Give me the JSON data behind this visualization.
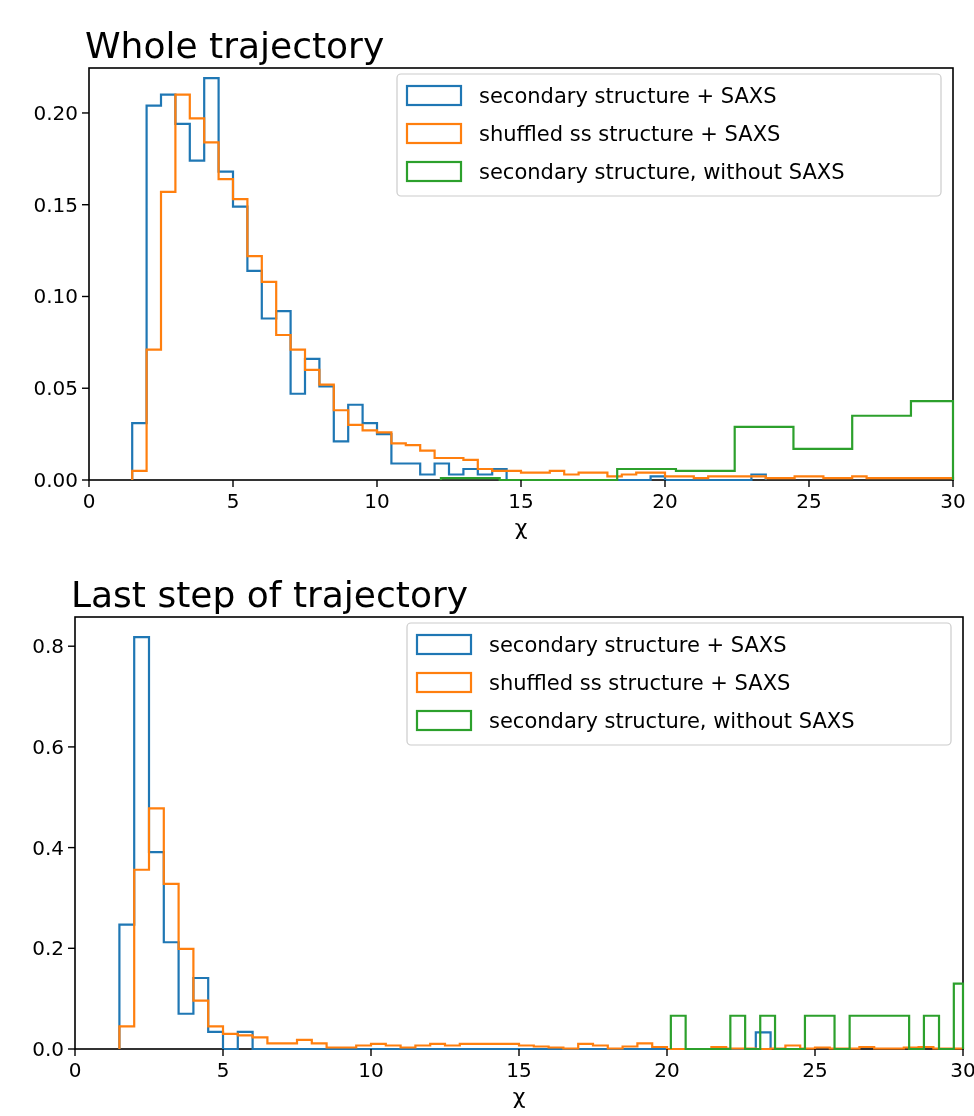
{
  "chart_data": [
    {
      "type": "step",
      "title": "Whole trajectory",
      "xlabel": "χ",
      "xlim": [
        0,
        30
      ],
      "xticks": [
        0,
        5,
        10,
        15,
        20,
        25,
        30
      ],
      "ylim": [
        0,
        0.2245
      ],
      "yticks": [
        {
          "value": 0,
          "label": "0.00"
        },
        {
          "value": 0.05,
          "label": "0.05"
        },
        {
          "value": 0.1,
          "label": "0.10"
        },
        {
          "value": 0.15,
          "label": "0.15"
        },
        {
          "value": 0.2,
          "label": "0.20"
        }
      ],
      "legend": "top right",
      "series": [
        {
          "name": "secondary structure + SAXS",
          "color": "#1f77b4",
          "x": [
            1.5,
            1.5,
            2,
            2.5,
            3,
            3.5,
            4,
            4.5,
            5,
            5.5,
            6,
            6.5,
            7,
            7.5,
            8,
            8.5,
            9,
            9.5,
            10,
            10.5,
            11,
            11.5,
            12,
            12.5,
            13,
            13.5,
            14,
            14.5,
            15,
            15.5,
            16,
            16.5,
            17,
            17.5,
            18,
            18.5,
            19,
            19.5,
            20,
            20.5,
            21,
            21.5,
            22,
            22.5,
            23,
            23.5
          ],
          "values": [
            0,
            0.031,
            0.204,
            0.21,
            0.194,
            0.174,
            0.219,
            0.168,
            0.149,
            0.114,
            0.088,
            0.092,
            0.047,
            0.066,
            0.051,
            0.021,
            0.041,
            0.031,
            0.025,
            0.009,
            0.009,
            0.003,
            0.009,
            0.003,
            0.006,
            0.003,
            0.006,
            0,
            0,
            0,
            0,
            0,
            0,
            0,
            0,
            0,
            0,
            0.002,
            0,
            0,
            0,
            0,
            0,
            0,
            0.003,
            0
          ]
        },
        {
          "name": "shuffled ss structure + SAXS",
          "color": "#ff7f0e",
          "x": [
            1.5,
            1.5,
            2,
            2.5,
            3,
            3.5,
            4,
            4.5,
            5,
            5.5,
            6,
            6.5,
            7,
            7.5,
            8,
            8.5,
            9,
            9.5,
            10,
            10.5,
            11,
            11.5,
            12,
            12.5,
            13,
            13.5,
            14,
            14.5,
            15,
            15.5,
            16,
            16.5,
            17,
            17.5,
            18,
            18.5,
            19,
            19.5,
            20,
            20.5,
            21,
            21.5,
            22,
            22.5,
            23,
            23.5,
            24,
            24.5,
            25,
            25.5,
            26,
            26.5,
            27,
            27.5,
            28,
            28.5,
            29,
            29.5,
            30
          ],
          "values": [
            0,
            0.005,
            0.071,
            0.157,
            0.21,
            0.197,
            0.184,
            0.164,
            0.153,
            0.122,
            0.108,
            0.079,
            0.071,
            0.06,
            0.052,
            0.038,
            0.03,
            0.027,
            0.026,
            0.02,
            0.019,
            0.016,
            0.012,
            0.012,
            0.011,
            0.006,
            0.005,
            0.005,
            0.004,
            0.004,
            0.005,
            0.003,
            0.004,
            0.004,
            0.002,
            0.003,
            0.004,
            0.004,
            0.002,
            0.002,
            0.001,
            0.002,
            0.002,
            0.002,
            0.002,
            0.001,
            0.001,
            0.002,
            0.002,
            0.001,
            0.001,
            0.002,
            0.001,
            0.001,
            0.001,
            0.001,
            0.001,
            0.001,
            0
          ]
        },
        {
          "name": "secondary structure, without SAXS",
          "color": "#2ca02c",
          "x": [
            12.22,
            12.22,
            14.26,
            16.3,
            18.34,
            20.38,
            22.42,
            24.46,
            26.5,
            28.54,
            30
          ],
          "values": [
            0,
            0.001,
            0,
            0,
            0.006,
            0.005,
            0.029,
            0.017,
            0.035,
            0.043,
            0
          ]
        }
      ]
    },
    {
      "type": "step",
      "title": "Last step of trajectory",
      "xlabel": "χ",
      "xlim": [
        0,
        30
      ],
      "xticks": [
        0,
        5,
        10,
        15,
        20,
        25,
        30
      ],
      "ylim": [
        0,
        0.858
      ],
      "yticks": [
        {
          "value": 0,
          "label": "0.0"
        },
        {
          "value": 0.2,
          "label": "0.2"
        },
        {
          "value": 0.4,
          "label": "0.4"
        },
        {
          "value": 0.6,
          "label": "0.6"
        },
        {
          "value": 0.8,
          "label": "0.8"
        }
      ],
      "legend": "top right",
      "series": [
        {
          "name": "secondary structure + SAXS",
          "color": "#1f77b4",
          "x": [
            1.5,
            1.5,
            2,
            2.5,
            3,
            3.5,
            4,
            4.5,
            5,
            5.5,
            6,
            6.5,
            7,
            7.5,
            8,
            8.5,
            9,
            9.5,
            10,
            10.5,
            11,
            11.5,
            12,
            12.5,
            13,
            13.5,
            14,
            14.5,
            15,
            15.5,
            16,
            16.5,
            17,
            17.5,
            18,
            18.5,
            19,
            19.5,
            20,
            20.5,
            21,
            21.5,
            22,
            22.5,
            23,
            23.5
          ],
          "values": [
            0,
            0.247,
            0.818,
            0.391,
            0.212,
            0.07,
            0.141,
            0.034,
            0,
            0.034,
            0,
            0,
            0,
            0,
            0,
            0,
            0,
            0,
            0,
            0,
            0,
            0,
            0,
            0,
            0,
            0,
            0,
            0,
            0,
            0,
            0,
            0,
            0,
            0,
            0,
            0,
            0,
            0,
            0,
            0,
            0,
            0,
            0,
            0,
            0.033,
            0
          ]
        },
        {
          "name": "shuffled ss structure + SAXS",
          "color": "#ff7f0e",
          "x": [
            1.5,
            1.5,
            2,
            2.5,
            3,
            3.5,
            4,
            4.5,
            5,
            5.5,
            6,
            6.5,
            7,
            7.5,
            8,
            8.5,
            9,
            9.5,
            10,
            10.5,
            11,
            11.5,
            12,
            12.5,
            13,
            13.5,
            14,
            14.5,
            15,
            15.5,
            16,
            16.5,
            17,
            17.5,
            18,
            18.5,
            19,
            19.5,
            20,
            20.5,
            21,
            21.5,
            22,
            22.5,
            23,
            23.5,
            24,
            24.5,
            25,
            25.5,
            26,
            26.5,
            27,
            27.5,
            28,
            28.5,
            29,
            29.5,
            30
          ],
          "values": [
            0,
            0.045,
            0.356,
            0.478,
            0.328,
            0.199,
            0.096,
            0.045,
            0.03,
            0.027,
            0.023,
            0.011,
            0.011,
            0.018,
            0.011,
            0.003,
            0.003,
            0.007,
            0.01,
            0.007,
            0.003,
            0.007,
            0.01,
            0.007,
            0.01,
            0.01,
            0.01,
            0.01,
            0.007,
            0.005,
            0.003,
            0.001,
            0.01,
            0.007,
            0.001,
            0.005,
            0.011,
            0.004,
            0,
            0,
            0,
            0.004,
            0.001,
            0.001,
            0,
            0.001,
            0.007,
            0.001,
            0.003,
            0.001,
            0.001,
            0.004,
            0.001,
            0.001,
            0.003,
            0.004,
            0.001,
            0.001,
            0
          ]
        },
        {
          "name": "secondary structure, without SAXS",
          "color": "#2ca02c",
          "x": [
            20.13,
            20.13,
            20.63,
            21.14,
            21.64,
            22.14,
            22.64,
            23.15,
            23.65,
            24.15,
            24.66,
            25.16,
            25.66,
            26.17,
            26.67,
            27.17,
            27.68,
            28.18,
            28.68,
            29.19,
            29.69,
            30
          ],
          "values": [
            0,
            0.066,
            0,
            0,
            0,
            0.066,
            0,
            0.066,
            0,
            0,
            0.066,
            0.066,
            0,
            0.066,
            0.066,
            0.066,
            0.066,
            0,
            0.066,
            0,
            0.13,
            0
          ]
        }
      ]
    }
  ]
}
